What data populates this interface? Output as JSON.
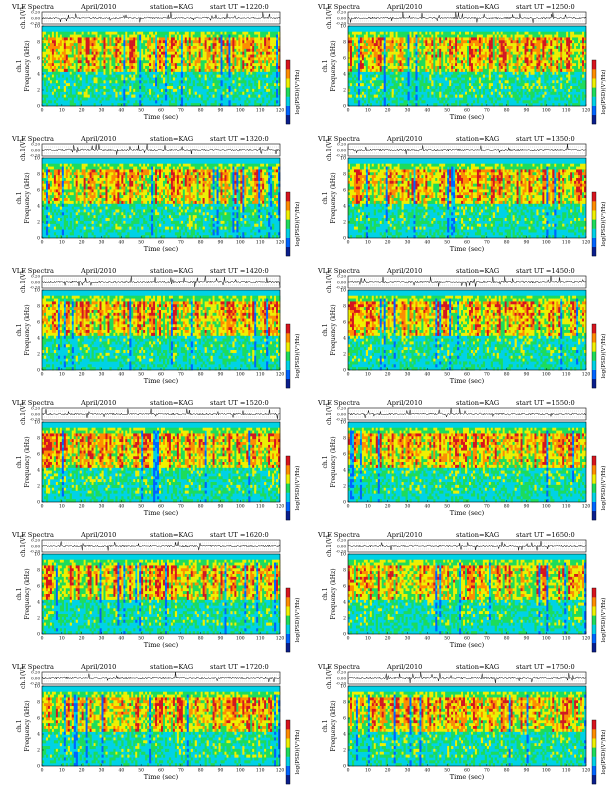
{
  "document": {
    "colorbar_label": "log(PSD)(V²/Hz)",
    "colorbar_ticks": [
      "",
      "",
      ""
    ]
  },
  "common": {
    "title_left": "VLF Spectra",
    "date": "April/2010",
    "station": "station=KAG",
    "ut_prefix": "start  UT  =",
    "y_label_wave": "ch.1(V)",
    "y_label_spec_top": "ch.1",
    "y_label_spec_bottom": "Frequency  (kHz)",
    "x_label": "Time  (sec)",
    "wave_ticks": [
      "0.20",
      "0.00",
      "-0.20"
    ],
    "freq_ticks": [
      "0",
      "2",
      "4",
      "6",
      "8",
      "10"
    ],
    "time_ticks": [
      "0",
      "10",
      "20",
      "30",
      "40",
      "50",
      "60",
      "70",
      "80",
      "90",
      "100",
      "110",
      "120"
    ]
  },
  "panels": [
    {
      "ut": "1220:0"
    },
    {
      "ut": "1250:0"
    },
    {
      "ut": "1320:0"
    },
    {
      "ut": "1350:0"
    },
    {
      "ut": "1420:0"
    },
    {
      "ut": "1450:0"
    },
    {
      "ut": "1520:0"
    },
    {
      "ut": "1550:0"
    },
    {
      "ut": "1620:0"
    },
    {
      "ut": "1650:0"
    },
    {
      "ut": "1720:0"
    },
    {
      "ut": "1750:0"
    }
  ],
  "chart_data": {
    "type": "heatmap",
    "description_kind": "spectrogram grid",
    "x_axis": {
      "label": "Time  (sec)",
      "range": [
        0,
        120
      ]
    },
    "y_axis_spectrogram": {
      "label": "Frequency  (kHz)",
      "range": [
        0,
        10
      ]
    },
    "y_axis_waveform": {
      "label": "ch.1(V)",
      "range": [
        -0.2,
        0.2
      ]
    },
    "colormap": [
      "#0a1e8c",
      "#0064ff",
      "#00d2e6",
      "#1edc5a",
      "#f0f000",
      "#ff8c00",
      "#d7141e"
    ],
    "panel_count": 12,
    "layout": "6 rows x 2 columns"
  }
}
